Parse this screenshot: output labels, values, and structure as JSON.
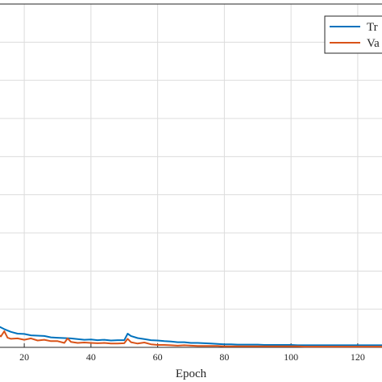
{
  "chart_data": {
    "type": "line",
    "xlabel": "Epoch",
    "ylabel": "",
    "title": "",
    "xlim": [
      12,
      128
    ],
    "x_ticks": [
      20,
      40,
      60,
      80,
      100,
      120
    ],
    "ylim": [
      0,
      1
    ],
    "grid": true,
    "legend_position": "top-right",
    "series": [
      {
        "name": "Tr",
        "color": "#0072BD",
        "x": [
          12,
          14,
          16,
          18,
          20,
          22,
          24,
          26,
          28,
          30,
          32,
          34,
          36,
          38,
          40,
          42,
          44,
          46,
          48,
          50,
          51,
          52,
          54,
          56,
          58,
          60,
          62,
          64,
          66,
          68,
          70,
          72,
          74,
          76,
          78,
          80,
          82,
          84,
          86,
          88,
          90,
          92,
          94,
          96,
          98,
          100,
          102,
          104,
          106,
          108,
          110,
          112,
          114,
          116,
          118,
          120,
          122,
          124,
          126,
          128
        ],
        "y": [
          0.063,
          0.053,
          0.045,
          0.04,
          0.039,
          0.035,
          0.034,
          0.033,
          0.029,
          0.028,
          0.027,
          0.026,
          0.024,
          0.022,
          0.023,
          0.021,
          0.022,
          0.02,
          0.021,
          0.021,
          0.04,
          0.033,
          0.027,
          0.024,
          0.021,
          0.02,
          0.018,
          0.017,
          0.015,
          0.015,
          0.013,
          0.013,
          0.012,
          0.011,
          0.01,
          0.009,
          0.009,
          0.008,
          0.008,
          0.008,
          0.008,
          0.007,
          0.007,
          0.007,
          0.007,
          0.007,
          0.006,
          0.006,
          0.006,
          0.006,
          0.006,
          0.006,
          0.006,
          0.006,
          0.006,
          0.006,
          0.006,
          0.006,
          0.006,
          0.006
        ]
      },
      {
        "name": "Va",
        "color": "#D95319",
        "x": [
          12,
          13,
          14,
          15,
          16,
          18,
          20,
          22,
          24,
          26,
          28,
          30,
          32,
          33,
          34,
          36,
          38,
          40,
          42,
          44,
          46,
          48,
          50,
          51,
          52,
          54,
          56,
          58,
          60,
          62,
          64,
          66,
          68,
          70,
          72,
          74,
          76,
          78,
          80,
          82,
          84,
          86,
          88,
          90,
          92,
          94,
          96,
          98,
          100,
          102,
          104,
          106,
          108,
          110,
          112,
          114,
          116,
          118,
          120,
          122,
          124,
          126,
          128
        ],
        "y": [
          0.039,
          0.032,
          0.047,
          0.028,
          0.025,
          0.026,
          0.022,
          0.026,
          0.02,
          0.022,
          0.018,
          0.018,
          0.013,
          0.026,
          0.016,
          0.013,
          0.014,
          0.013,
          0.012,
          0.013,
          0.011,
          0.011,
          0.012,
          0.025,
          0.015,
          0.011,
          0.014,
          0.009,
          0.007,
          0.007,
          0.006,
          0.005,
          0.006,
          0.005,
          0.004,
          0.004,
          0.004,
          0.004,
          0.003,
          0.003,
          0.003,
          0.003,
          0.003,
          0.003,
          0.003,
          0.003,
          0.003,
          0.003,
          0.003,
          0.003,
          0.002,
          0.002,
          0.002,
          0.002,
          0.002,
          0.002,
          0.002,
          0.002,
          0.002,
          0.002,
          0.002,
          0.002,
          0.002
        ]
      }
    ]
  }
}
